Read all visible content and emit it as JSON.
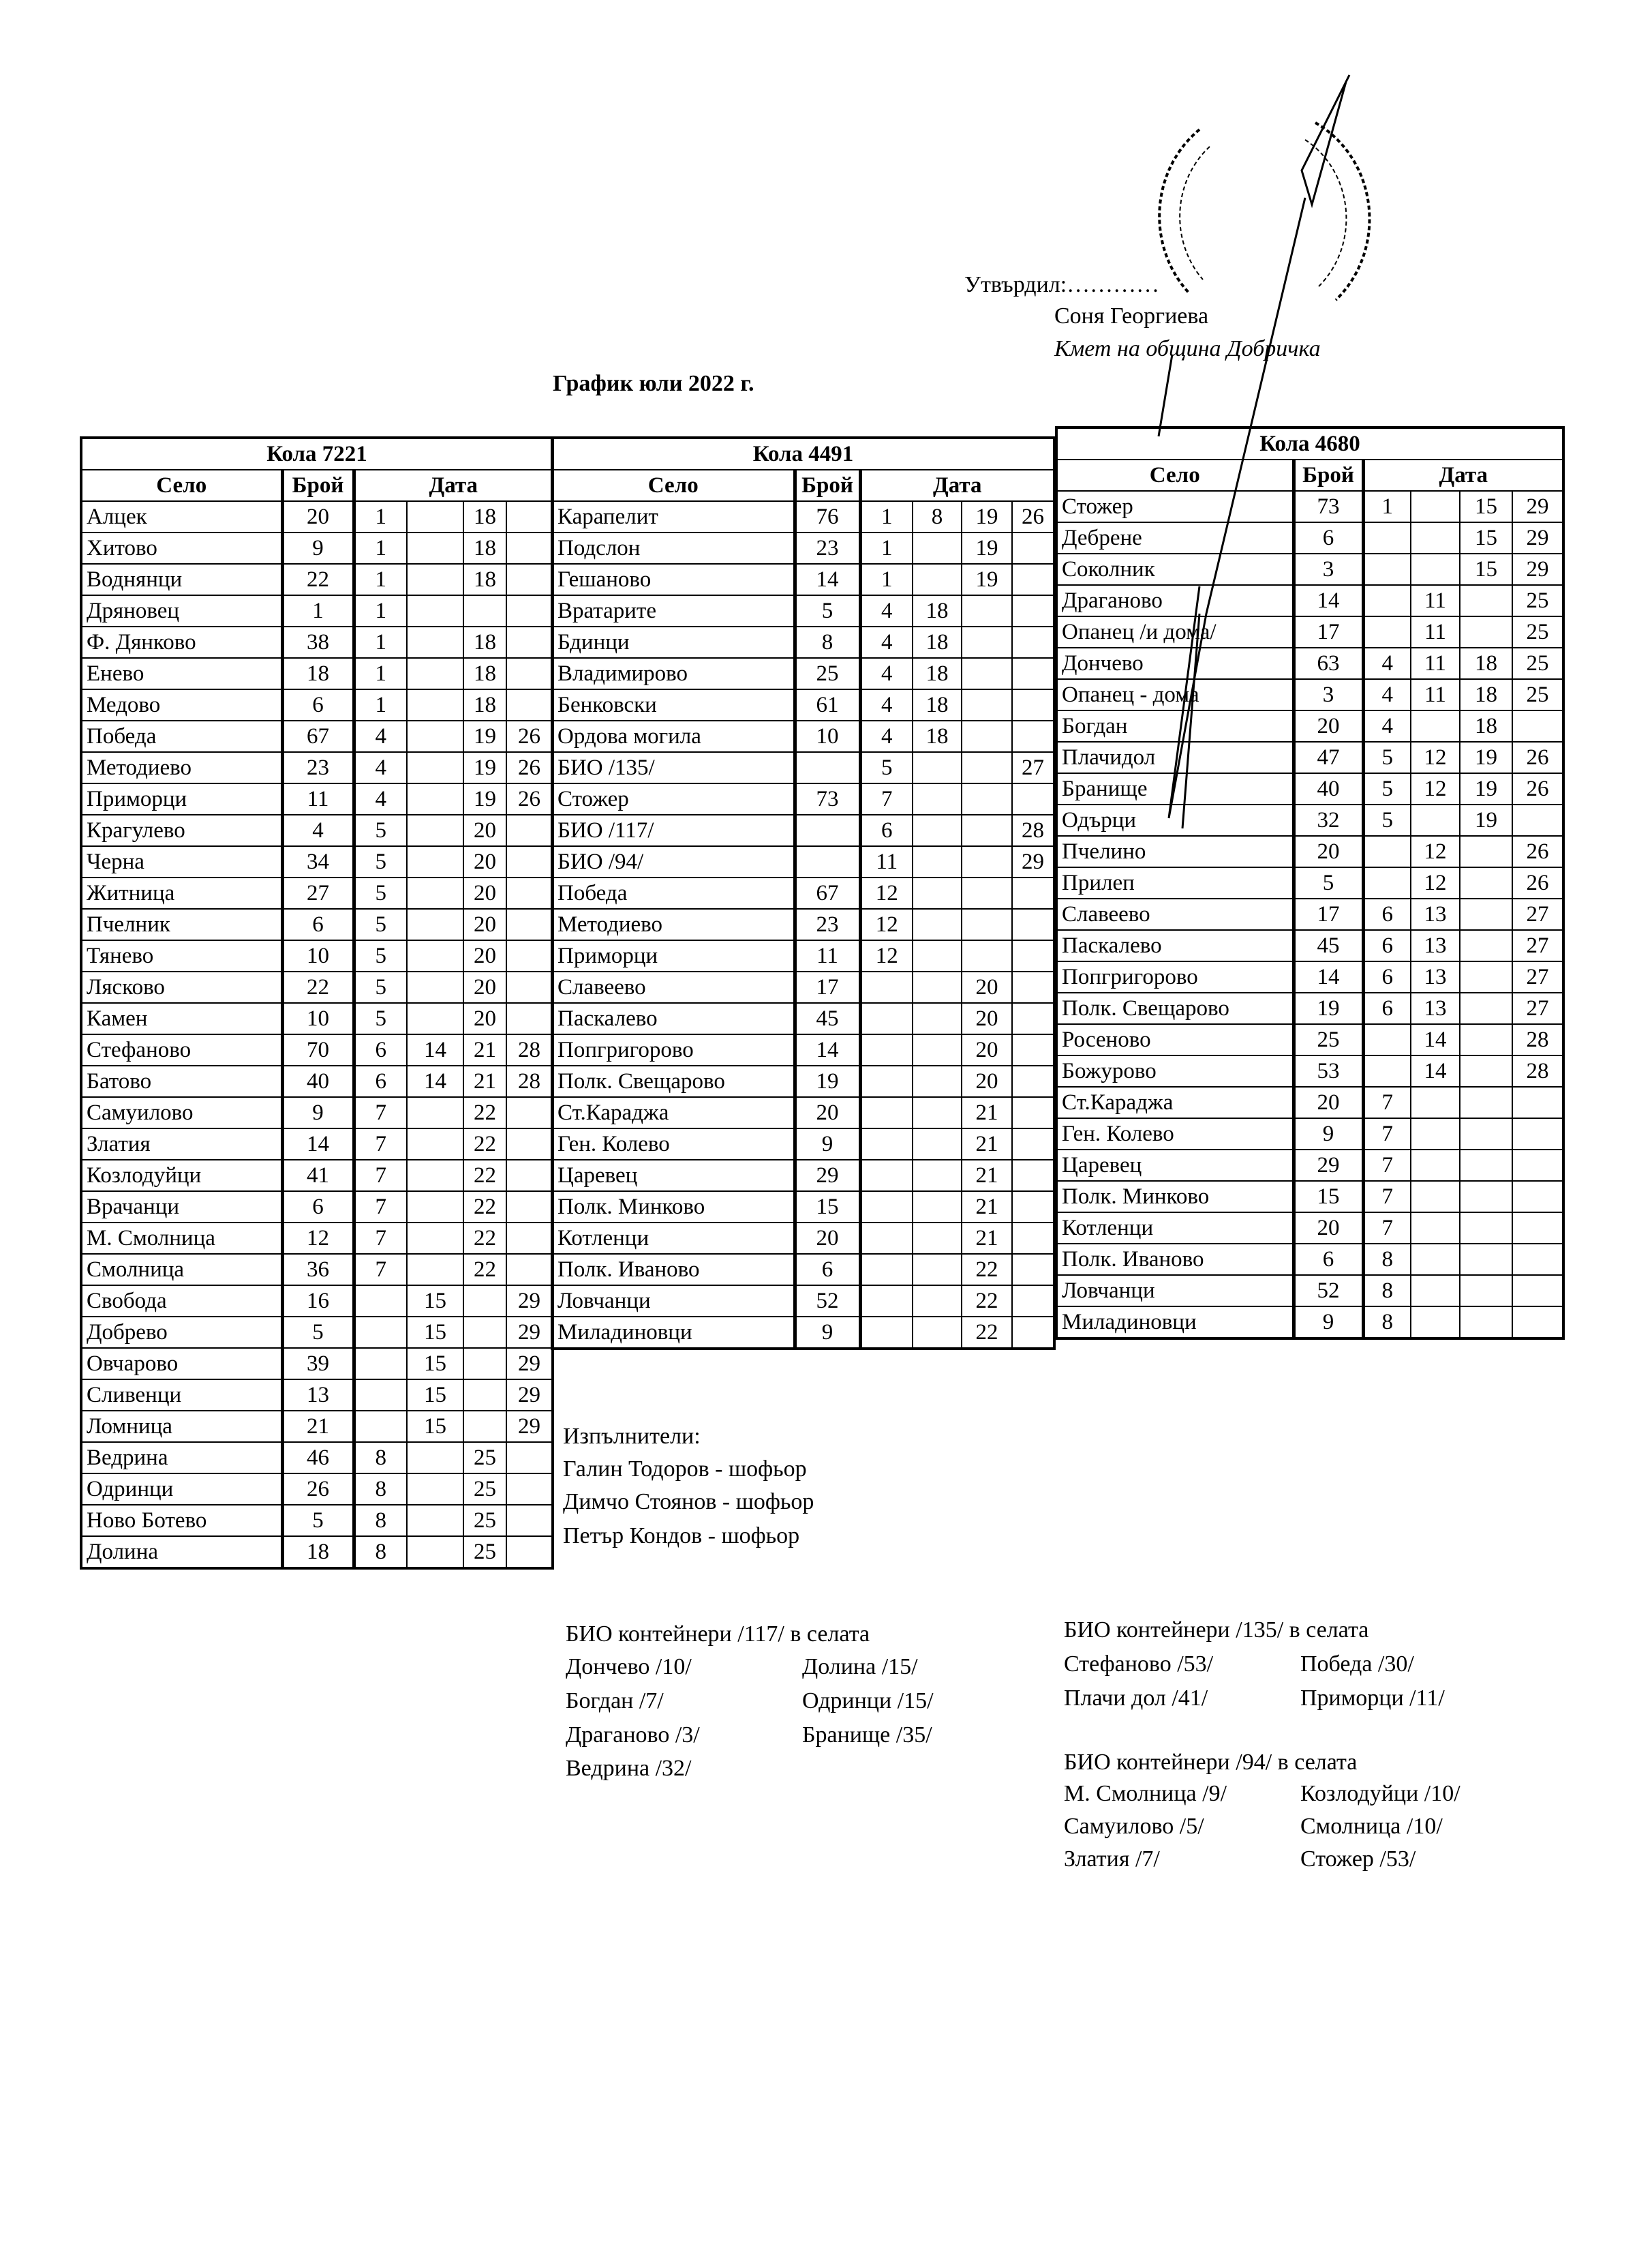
{
  "approval": {
    "approved_label": "Утвърдил:…………",
    "name": "Соня Георгиева",
    "position": "Кмет  на община Добричка"
  },
  "title": "График юли 2022 г.",
  "column_headers": {
    "village": "Село",
    "count": "Брой",
    "date": "Дата"
  },
  "tables": [
    {
      "vehicle": "Кола 7221",
      "rows": [
        [
          "Алцек",
          "20",
          "1",
          "",
          "18",
          ""
        ],
        [
          "Хитово",
          "9",
          "1",
          "",
          "18",
          ""
        ],
        [
          "Воднянци",
          "22",
          "1",
          "",
          "18",
          ""
        ],
        [
          "Дряновец",
          "1",
          "1",
          "",
          "",
          ""
        ],
        [
          "Ф. Дянково",
          "38",
          "1",
          "",
          "18",
          ""
        ],
        [
          "Енево",
          "18",
          "1",
          "",
          "18",
          ""
        ],
        [
          "Медово",
          "6",
          "1",
          "",
          "18",
          ""
        ],
        [
          "Победа",
          "67",
          "4",
          "",
          "19",
          "26"
        ],
        [
          "Методиево",
          "23",
          "4",
          "",
          "19",
          "26"
        ],
        [
          "Приморци",
          "11",
          "4",
          "",
          "19",
          "26"
        ],
        [
          "Крагулево",
          "4",
          "5",
          "",
          "20",
          ""
        ],
        [
          "Черна",
          "34",
          "5",
          "",
          "20",
          ""
        ],
        [
          "Житница",
          "27",
          "5",
          "",
          "20",
          ""
        ],
        [
          "Пчелник",
          "6",
          "5",
          "",
          "20",
          ""
        ],
        [
          "Тянево",
          "10",
          "5",
          "",
          "20",
          ""
        ],
        [
          "Лясково",
          "22",
          "5",
          "",
          "20",
          ""
        ],
        [
          "Камен",
          "10",
          "5",
          "",
          "20",
          ""
        ],
        [
          "Стефаново",
          "70",
          "6",
          "14",
          "21",
          "28"
        ],
        [
          "Батово",
          "40",
          "6",
          "14",
          "21",
          "28"
        ],
        [
          "Самуилово",
          "9",
          "7",
          "",
          "22",
          ""
        ],
        [
          "Златия",
          "14",
          "7",
          "",
          "22",
          ""
        ],
        [
          "Козлодуйци",
          "41",
          "7",
          "",
          "22",
          ""
        ],
        [
          "Врачанци",
          "6",
          "7",
          "",
          "22",
          ""
        ],
        [
          "М. Смолница",
          "12",
          "7",
          "",
          "22",
          ""
        ],
        [
          "Смолница",
          "36",
          "7",
          "",
          "22",
          ""
        ],
        [
          "Свобода",
          "16",
          "",
          "15",
          "",
          "29"
        ],
        [
          "Добрево",
          "5",
          "",
          "15",
          "",
          "29"
        ],
        [
          "Овчарово",
          "39",
          "",
          "15",
          "",
          "29"
        ],
        [
          "Сливенци",
          "13",
          "",
          "15",
          "",
          "29"
        ],
        [
          "Ломница",
          "21",
          "",
          "15",
          "",
          "29"
        ],
        [
          "Ведрина",
          "46",
          "8",
          "",
          "25",
          ""
        ],
        [
          "Одринци",
          "26",
          "8",
          "",
          "25",
          ""
        ],
        [
          "Ново Ботево",
          "5",
          "8",
          "",
          "25",
          ""
        ],
        [
          "Долина",
          "18",
          "8",
          "",
          "25",
          ""
        ]
      ]
    },
    {
      "vehicle": "Кола 4491",
      "rows": [
        [
          "Карапелит",
          "76",
          "1",
          "8",
          "19",
          "26"
        ],
        [
          "Подслон",
          "23",
          "1",
          "",
          "19",
          ""
        ],
        [
          "Гешаново",
          "14",
          "1",
          "",
          "19",
          ""
        ],
        [
          "Вратарите",
          "5",
          "4",
          "18",
          "",
          ""
        ],
        [
          "Бдинци",
          "8",
          "4",
          "18",
          "",
          ""
        ],
        [
          "Владимирово",
          "25",
          "4",
          "18",
          "",
          ""
        ],
        [
          "Бенковски",
          "61",
          "4",
          "18",
          "",
          ""
        ],
        [
          "Ордова могила",
          "10",
          "4",
          "18",
          "",
          ""
        ],
        [
          "БИО /135/",
          "",
          "5",
          "",
          "",
          "27"
        ],
        [
          "Стожер",
          "73",
          "7",
          "",
          "",
          ""
        ],
        [
          "БИО /117/",
          "",
          "6",
          "",
          "",
          "28"
        ],
        [
          "БИО /94/",
          "",
          "11",
          "",
          "",
          "29"
        ],
        [
          "Победа",
          "67",
          "12",
          "",
          "",
          ""
        ],
        [
          "Методиево",
          "23",
          "12",
          "",
          "",
          ""
        ],
        [
          "Приморци",
          "11",
          "12",
          "",
          "",
          ""
        ],
        [
          "Славеево",
          "17",
          "",
          "",
          "20",
          ""
        ],
        [
          "Паскалево",
          "45",
          "",
          "",
          "20",
          ""
        ],
        [
          "Попгригорово",
          "14",
          "",
          "",
          "20",
          ""
        ],
        [
          "Полк. Свещарово",
          "19",
          "",
          "",
          "20",
          ""
        ],
        [
          "Ст.Караджа",
          "20",
          "",
          "",
          "21",
          ""
        ],
        [
          "Ген. Колево",
          "9",
          "",
          "",
          "21",
          ""
        ],
        [
          "Царевец",
          "29",
          "",
          "",
          "21",
          ""
        ],
        [
          "Полк. Минково",
          "15",
          "",
          "",
          "21",
          ""
        ],
        [
          "Котленци",
          "20",
          "",
          "",
          "21",
          ""
        ],
        [
          "Полк. Иваново",
          "6",
          "",
          "",
          "22",
          ""
        ],
        [
          "Ловчанци",
          "52",
          "",
          "",
          "22",
          ""
        ],
        [
          "Миладиновци",
          "9",
          "",
          "",
          "22",
          ""
        ]
      ]
    },
    {
      "vehicle": "Кола 4680",
      "rows": [
        [
          "Стожер",
          "73",
          "1",
          "",
          "15",
          "29"
        ],
        [
          "Дебрене",
          "6",
          "",
          "",
          "15",
          "29"
        ],
        [
          "Соколник",
          "3",
          "",
          "",
          "15",
          "29"
        ],
        [
          "Драганово",
          "14",
          "",
          "11",
          "",
          "25"
        ],
        [
          "Опанец /и дома/",
          "17",
          "",
          "11",
          "",
          "25"
        ],
        [
          "Дончево",
          "63",
          "4",
          "11",
          "18",
          "25"
        ],
        [
          "Опанец - дома",
          "3",
          "4",
          "11",
          "18",
          "25"
        ],
        [
          "Богдан",
          "20",
          "4",
          "",
          "18",
          ""
        ],
        [
          "Плачидол",
          "47",
          "5",
          "12",
          "19",
          "26"
        ],
        [
          "Бранище",
          "40",
          "5",
          "12",
          "19",
          "26"
        ],
        [
          "Одърци",
          "32",
          "5",
          "",
          "19",
          ""
        ],
        [
          "Пчелино",
          "20",
          "",
          "12",
          "",
          "26"
        ],
        [
          "Прилеп",
          "5",
          "",
          "12",
          "",
          "26"
        ],
        [
          "Славеево",
          "17",
          "6",
          "13",
          "",
          "27"
        ],
        [
          "Паскалево",
          "45",
          "6",
          "13",
          "",
          "27"
        ],
        [
          "Попгригорово",
          "14",
          "6",
          "13",
          "",
          "27"
        ],
        [
          "Полк. Свещарово",
          "19",
          "6",
          "13",
          "",
          "27"
        ],
        [
          "Росеново",
          "25",
          "",
          "14",
          "",
          "28"
        ],
        [
          "Божурово",
          "53",
          "",
          "14",
          "",
          "28"
        ],
        [
          "Ст.Караджа",
          "20",
          "7",
          "",
          "",
          ""
        ],
        [
          "Ген. Колево",
          "9",
          "7",
          "",
          "",
          ""
        ],
        [
          "Царевец",
          "29",
          "7",
          "",
          "",
          ""
        ],
        [
          "Полк. Минково",
          "15",
          "7",
          "",
          "",
          ""
        ],
        [
          "Котленци",
          "20",
          "7",
          "",
          "",
          ""
        ],
        [
          "Полк. Иваново",
          "6",
          "8",
          "",
          "",
          ""
        ],
        [
          "Ловчанци",
          "52",
          "8",
          "",
          "",
          ""
        ],
        [
          "Миладиновци",
          "9",
          "8",
          "",
          "",
          ""
        ]
      ]
    }
  ],
  "executors": {
    "heading": "Изпълнители:",
    "people": [
      "Галин Тодоров - шофьор",
      "Димчо Стоянов - шофьор",
      "Петър Кондов - шофьор"
    ]
  },
  "bio_117": {
    "heading": "БИО контейнери /117/ в селата",
    "col1": [
      "Дончево /10/",
      "Богдан /7/",
      "Драганово /3/",
      "Ведрина /32/"
    ],
    "col2": [
      "Долина /15/",
      "Одринци /15/",
      "Бранище /35/"
    ]
  },
  "bio_135": {
    "heading": "БИО контейнери /135/ в селата",
    "col1": [
      "Стефаново /53/",
      "Плачи дол /41/"
    ],
    "col2": [
      "Победа /30/",
      "Приморци /11/"
    ]
  },
  "bio_94": {
    "heading": "БИО контейнери /94/ в селата",
    "col1": [
      "М. Смолница /9/",
      "Самуилово /5/",
      "Златия /7/"
    ],
    "col2": [
      "Козлодуйци /10/",
      "Смолница /10/",
      "Стожер /53/"
    ]
  }
}
